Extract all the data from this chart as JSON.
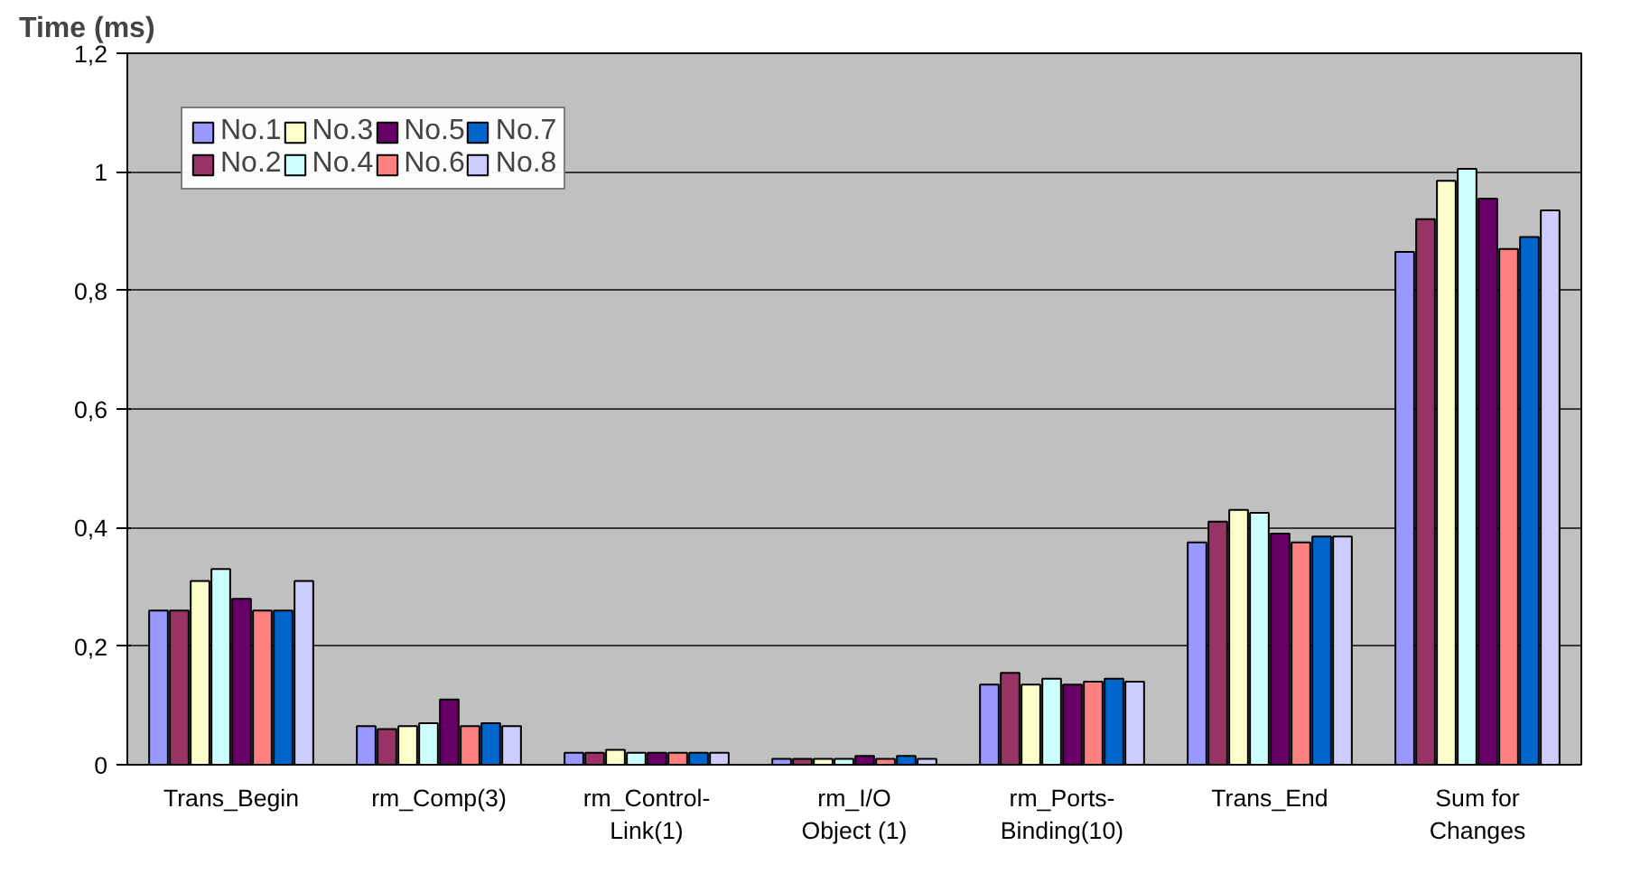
{
  "chart_data": {
    "type": "bar",
    "ylabel": "Time (ms)",
    "categories": [
      "Trans_Begin",
      "rm_Comp(3)",
      "rm_Control-Link(1)",
      "rm_I/O Object (1)",
      "rm_Ports-Binding(10)",
      "Trans_End",
      "Sum for Changes"
    ],
    "series": [
      {
        "name": "No.1",
        "color": "#9999ff",
        "values": [
          0.26,
          0.065,
          0.02,
          0.01,
          0.135,
          0.375,
          0.865
        ]
      },
      {
        "name": "No.2",
        "color": "#993366",
        "values": [
          0.26,
          0.06,
          0.02,
          0.01,
          0.155,
          0.41,
          0.92
        ]
      },
      {
        "name": "No.3",
        "color": "#ffffcc",
        "values": [
          0.31,
          0.065,
          0.025,
          0.01,
          0.135,
          0.43,
          0.985
        ]
      },
      {
        "name": "No.4",
        "color": "#ccffff",
        "values": [
          0.33,
          0.07,
          0.02,
          0.01,
          0.145,
          0.425,
          1.005
        ]
      },
      {
        "name": "No.5",
        "color": "#660066",
        "values": [
          0.28,
          0.11,
          0.02,
          0.015,
          0.135,
          0.39,
          0.955
        ]
      },
      {
        "name": "No.6",
        "color": "#ff8080",
        "values": [
          0.26,
          0.065,
          0.02,
          0.01,
          0.14,
          0.375,
          0.87
        ]
      },
      {
        "name": "No.7",
        "color": "#0066cc",
        "values": [
          0.26,
          0.07,
          0.02,
          0.015,
          0.145,
          0.385,
          0.89
        ]
      },
      {
        "name": "No.8",
        "color": "#ccccff",
        "values": [
          0.31,
          0.065,
          0.02,
          0.01,
          0.14,
          0.385,
          0.935
        ]
      }
    ],
    "ylim": [
      0,
      1.2
    ],
    "yticks": [
      0,
      {
        "value": 0.2,
        "label": "0,2"
      },
      {
        "value": 0.4,
        "label": "0,4"
      },
      {
        "value": 0.6,
        "label": "0,6"
      },
      {
        "value": 0.8,
        "label": "0,8"
      },
      1,
      {
        "value": 1.2,
        "label": "1,2"
      }
    ],
    "grid": "y",
    "legend": "top left"
  }
}
